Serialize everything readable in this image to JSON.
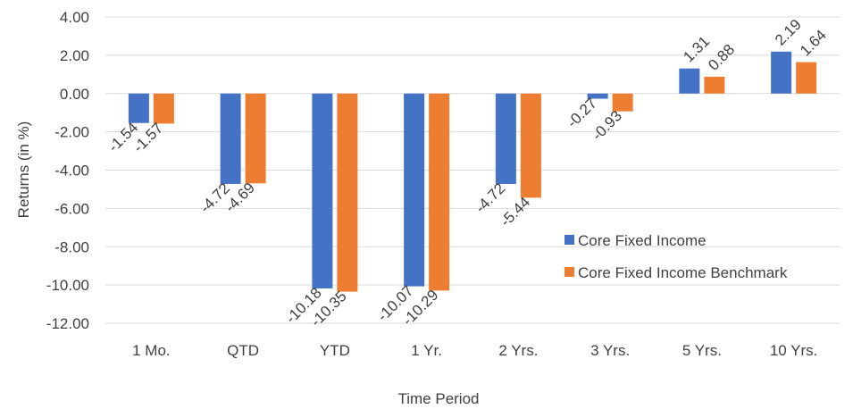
{
  "chart_data": {
    "type": "bar",
    "categories": [
      "1 Mo.",
      "QTD",
      "YTD",
      "1 Yr.",
      "2 Yrs.",
      "3 Yrs.",
      "5 Yrs.",
      "10 Yrs."
    ],
    "series": [
      {
        "name": "Core Fixed Income",
        "color": "#4472C4",
        "values": [
          -1.54,
          -4.72,
          -10.18,
          -10.07,
          -4.72,
          -0.27,
          1.31,
          2.19
        ]
      },
      {
        "name": "Core Fixed Income Benchmark",
        "color": "#ED7D31",
        "values": [
          -1.57,
          -4.69,
          -10.35,
          -10.29,
          -5.44,
          -0.93,
          0.88,
          1.64
        ]
      }
    ],
    "ylim": [
      -12,
      4
    ],
    "yticks": [
      "4.00",
      "2.00",
      "0.00",
      "-2.00",
      "-4.00",
      "-6.00",
      "-8.00",
      "-10.00",
      "-12.00"
    ],
    "xlabel": "Time Period",
    "ylabel": "Returns (in %)",
    "grid": true,
    "legend_position": "center-right"
  }
}
